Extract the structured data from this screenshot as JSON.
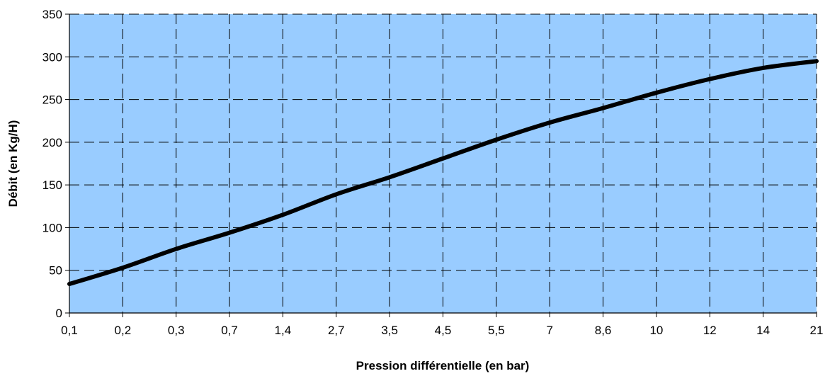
{
  "chart_data": {
    "type": "line",
    "title": "",
    "xlabel": "Pression différentielle (en bar)",
    "ylabel": "Débit (en Kg/H)",
    "categories": [
      "0,1",
      "0,2",
      "0,3",
      "0,7",
      "1,4",
      "2,7",
      "3,5",
      "4,5",
      "5,5",
      "7",
      "8,6",
      "10",
      "12",
      "14",
      "21"
    ],
    "series": [
      {
        "values": [
          34,
          53,
          75,
          94,
          115,
          139,
          159,
          181,
          203,
          223,
          240,
          258,
          274,
          287,
          295
        ]
      }
    ],
    "ylim": [
      0,
      350
    ],
    "yticks": [
      0,
      50,
      100,
      150,
      200,
      250,
      300,
      350
    ],
    "grid": true,
    "legend": "none",
    "colors": {
      "plot_background": "#99CCFF",
      "line": "#000000",
      "grid": "#000000"
    }
  }
}
